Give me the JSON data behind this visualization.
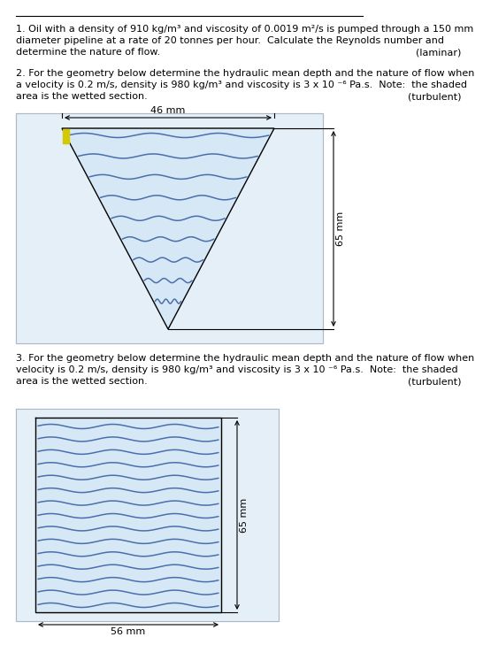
{
  "bg_color": "#ffffff",
  "text_color": "#000000",
  "q1_text_parts": [
    {
      "text": "1. Oil with a density of 910 kg/m",
      "style": "normal"
    },
    {
      "text": "3",
      "style": "super"
    },
    {
      "text": " and viscosity of ",
      "style": "normal"
    },
    {
      "text": "0.0019 m",
      "style": "normal"
    },
    {
      "text": "2",
      "style": "super"
    },
    {
      "text": "/s is pumped through a 150 mm",
      "style": "normal"
    }
  ],
  "q1_line1": "1. Oil with a density of 910 kg/m³ and viscosity of 0.0019 m²/s is pumped through a 150 mm",
  "q1_line2": "diameter pipeline at a rate of 20 tonnes per hour.  Calculate the Reynolds number and",
  "q1_line3": "determine the nature of flow.",
  "q1_answer": "(laminar)",
  "q2_line1": "2. For the geometry below determine the hydraulic mean depth and the nature of flow when",
  "q2_line2": "a velocity is 0.2 m/s, density is 980 kg/m³ and viscosity is 3 x 10 ⁻⁶ Pa.s.  Note:  the shaded",
  "q2_line3": "area is the wetted section.",
  "q2_answer": "(turbulent)",
  "q3_line1": "3. For the geometry below determine the hydraulic mean depth and the nature of flow when",
  "q3_line2": "velocity is 0.2 m/s, density is 980 kg/m³ and viscosity is 3 x 10 ⁻⁶ Pa.s.  Note:  the shaded",
  "q3_line3": "area is the wetted section.",
  "q3_answer": "(turbulent)",
  "wave_color": "#4b6fad",
  "wave_bg": "#d6e8f5",
  "outer_bg": "#e4eff8",
  "dim_color": "#333333",
  "yellow_color": "#d4c800"
}
